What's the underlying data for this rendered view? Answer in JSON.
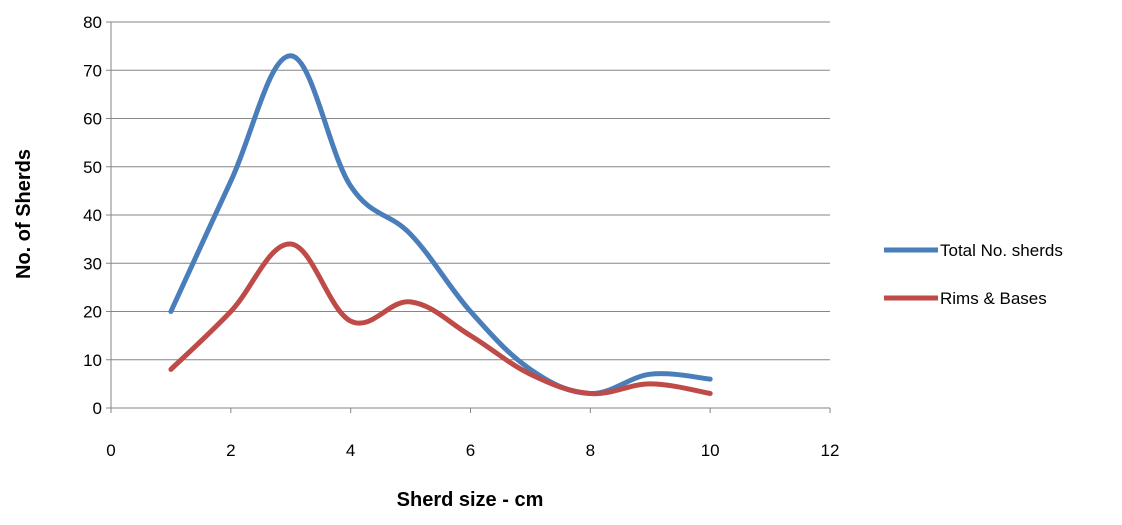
{
  "chart_data": {
    "type": "line",
    "title": "",
    "xlabel": "Sherd size - cm",
    "ylabel": "No. of Sherds",
    "xlim": [
      0,
      12
    ],
    "ylim": [
      0,
      80
    ],
    "xticks": [
      0,
      2,
      4,
      6,
      8,
      10,
      12
    ],
    "yticks": [
      0,
      10,
      20,
      30,
      40,
      50,
      60,
      70,
      80
    ],
    "grid": {
      "horizontal": true,
      "vertical": false
    },
    "legend_position": "right",
    "smooth": true,
    "series": [
      {
        "name": "Total No. sherds",
        "color": "#4a7ebb",
        "x": [
          1,
          2,
          3,
          4,
          5,
          6,
          7,
          8,
          9,
          10
        ],
        "y": [
          20,
          47,
          73,
          46,
          36,
          20,
          8,
          3,
          7,
          6
        ]
      },
      {
        "name": "Rims & Bases",
        "color": "#be4b48",
        "x": [
          1,
          2,
          3,
          4,
          5,
          6,
          7,
          8,
          9,
          10
        ],
        "y": [
          8,
          20,
          34,
          18,
          22,
          15,
          7,
          3,
          5,
          3
        ]
      }
    ]
  }
}
